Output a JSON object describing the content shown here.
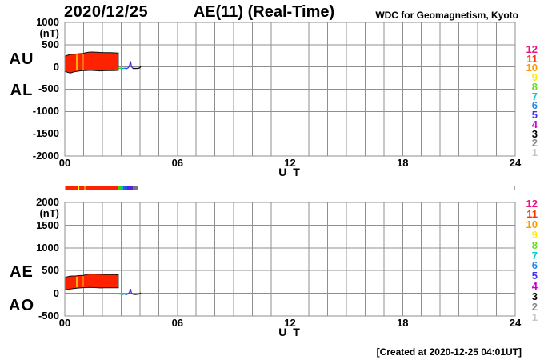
{
  "header": {
    "date": "2020/12/25",
    "title": "AE(11) (Real-Time)",
    "source": "WDC for Geomagnetism, Kyoto"
  },
  "footer": {
    "created": "[Created at 2020-12-25 04:01UT]"
  },
  "colors": {
    "grid": "#8f8f8f",
    "band_fill": "#ff2200",
    "band_edge": "#111111",
    "bar_border": "#a8a8a8"
  },
  "legend": {
    "items": [
      {
        "label": "12",
        "color": "#ee1188"
      },
      {
        "label": "11",
        "color": "#ff3300"
      },
      {
        "label": "10",
        "color": "#ff9900"
      },
      {
        "label": "9",
        "color": "#ffee00"
      },
      {
        "label": "8",
        "color": "#66dd22"
      },
      {
        "label": "7",
        "color": "#00cccc"
      },
      {
        "label": "6",
        "color": "#2288ee"
      },
      {
        "label": "5",
        "color": "#4433ee"
      },
      {
        "label": "4",
        "color": "#cc00cc"
      },
      {
        "label": "3",
        "color": "#000000"
      },
      {
        "label": "2",
        "color": "#888888"
      },
      {
        "label": "1",
        "color": "#c6c6c6"
      }
    ]
  },
  "activity_bar": {
    "range_hours": [
      0,
      24
    ],
    "segments": [
      {
        "start": 0,
        "end": 2.81,
        "color": "#ff2200"
      },
      {
        "start": 2.81,
        "end": 2.94,
        "color": "#44cc11"
      },
      {
        "start": 2.94,
        "end": 3.07,
        "color": "#00bbcc"
      },
      {
        "start": 3.07,
        "end": 3.3,
        "color": "#2255ee"
      },
      {
        "start": 3.3,
        "end": 3.58,
        "color": "#5522dd"
      },
      {
        "start": 3.58,
        "end": 3.84,
        "color": "#777777"
      }
    ],
    "markers": [
      {
        "t": 0.64,
        "color": "#ffee00"
      },
      {
        "t": 0.98,
        "color": "#ff9900"
      }
    ]
  },
  "chart_data": [
    {
      "type": "area",
      "title": "AE(11) (Real-Time)  upper panel (AU/AL)",
      "xlabel": "U T",
      "unit": "(nT)",
      "xlim": [
        0,
        24
      ],
      "ylim": [
        -2000,
        1000
      ],
      "x_ticks": [
        {
          "t": 0,
          "label": "00"
        },
        {
          "t": 6,
          "label": "06"
        },
        {
          "t": 12,
          "label": "12"
        },
        {
          "t": 18,
          "label": "18"
        },
        {
          "t": 24,
          "label": "24"
        }
      ],
      "y_ticks": [
        {
          "v": 1000,
          "label": "1000"
        },
        {
          "v": 500,
          "label": "500"
        },
        {
          "v": 0,
          "label": "0"
        },
        {
          "v": -500,
          "label": "-500"
        },
        {
          "v": -1000,
          "label": "-1000"
        },
        {
          "v": -1500,
          "label": "-1500"
        },
        {
          "v": -2000,
          "label": "-2000"
        }
      ],
      "left_labels": [
        "AU",
        "AL"
      ],
      "band": {
        "upper": {
          "name": "AU",
          "points": [
            [
              0,
              240
            ],
            [
              0.1,
              255
            ],
            [
              0.25,
              280
            ],
            [
              0.45,
              285
            ],
            [
              0.6,
              290
            ],
            [
              0.64,
              292
            ],
            [
              0.8,
              300
            ],
            [
              0.98,
              305
            ],
            [
              1.1,
              320
            ],
            [
              1.25,
              330
            ],
            [
              1.45,
              335
            ],
            [
              1.7,
              330
            ],
            [
              1.95,
              325
            ],
            [
              2.2,
              322
            ],
            [
              2.45,
              322
            ],
            [
              2.65,
              318
            ],
            [
              2.85,
              315
            ]
          ]
        },
        "lower": {
          "name": "AL",
          "points": [
            [
              0,
              -100
            ],
            [
              0.15,
              -120
            ],
            [
              0.3,
              -135
            ],
            [
              0.5,
              -110
            ],
            [
              0.7,
              -95
            ],
            [
              0.9,
              -85
            ],
            [
              1.1,
              -80
            ],
            [
              1.35,
              -75
            ],
            [
              1.6,
              -80
            ],
            [
              1.85,
              -88
            ],
            [
              2.1,
              -85
            ],
            [
              2.35,
              -80
            ],
            [
              2.6,
              -82
            ],
            [
              2.85,
              -75
            ]
          ]
        }
      },
      "tail": [
        {
          "color": "#44cc11",
          "points": [
            [
              2.85,
              -20
            ],
            [
              2.95,
              -30
            ],
            [
              3.02,
              -20
            ]
          ]
        },
        {
          "color": "#00bbcc",
          "points": [
            [
              3.02,
              -20
            ],
            [
              3.1,
              -35
            ],
            [
              3.18,
              -25
            ]
          ]
        },
        {
          "color": "#2255ee",
          "points": [
            [
              3.18,
              -25
            ],
            [
              3.28,
              -40
            ],
            [
              3.38,
              -20
            ]
          ]
        },
        {
          "color": "#5522dd",
          "points": [
            [
              3.38,
              -20
            ],
            [
              3.45,
              30
            ],
            [
              3.5,
              130
            ],
            [
              3.55,
              10
            ],
            [
              3.62,
              -30
            ]
          ]
        },
        {
          "color": "#111111",
          "points": [
            [
              3.62,
              -30
            ],
            [
              3.75,
              -35
            ],
            [
              3.9,
              -30
            ],
            [
              4.0,
              -20
            ],
            [
              4.05,
              15
            ]
          ]
        }
      ]
    },
    {
      "type": "area",
      "title": "AE(11) (Real-Time)  lower panel (AE/AO)",
      "xlabel": "U T",
      "unit": "(nT)",
      "xlim": [
        0,
        24
      ],
      "ylim": [
        -500,
        2000
      ],
      "x_ticks": [
        {
          "t": 0,
          "label": "00"
        },
        {
          "t": 6,
          "label": "06"
        },
        {
          "t": 12,
          "label": "12"
        },
        {
          "t": 18,
          "label": "18"
        },
        {
          "t": 24,
          "label": "24"
        }
      ],
      "y_ticks": [
        {
          "v": 2000,
          "label": "2000"
        },
        {
          "v": 1500,
          "label": "1500"
        },
        {
          "v": 1000,
          "label": "1000"
        },
        {
          "v": 500,
          "label": "500"
        },
        {
          "v": 0,
          "label": "0"
        },
        {
          "v": -500,
          "label": "-500"
        }
      ],
      "left_labels": [
        "AE",
        "AO"
      ],
      "band": {
        "upper": {
          "name": "AE",
          "points": [
            [
              0,
              340
            ],
            [
              0.1,
              360
            ],
            [
              0.25,
              375
            ],
            [
              0.45,
              380
            ],
            [
              0.6,
              382
            ],
            [
              0.8,
              390
            ],
            [
              0.98,
              395
            ],
            [
              1.1,
              405
            ],
            [
              1.25,
              420
            ],
            [
              1.45,
              425
            ],
            [
              1.7,
              420
            ],
            [
              1.95,
              415
            ],
            [
              2.2,
              412
            ],
            [
              2.45,
              412
            ],
            [
              2.65,
              410
            ],
            [
              2.85,
              405
            ]
          ]
        },
        "lower": {
          "name": "AO",
          "points": [
            [
              0,
              70
            ],
            [
              0.15,
              85
            ],
            [
              0.3,
              95
            ],
            [
              0.5,
              105
            ],
            [
              0.7,
              115
            ],
            [
              0.9,
              120
            ],
            [
              1.1,
              125
            ],
            [
              1.35,
              128
            ],
            [
              1.6,
              125
            ],
            [
              1.85,
              118
            ],
            [
              2.1,
              120
            ],
            [
              2.35,
              122
            ],
            [
              2.6,
              120
            ],
            [
              2.85,
              122
            ]
          ]
        }
      },
      "tail": [
        {
          "color": "#44cc11",
          "points": [
            [
              2.85,
              -10
            ],
            [
              2.95,
              -20
            ],
            [
              3.02,
              -10
            ]
          ]
        },
        {
          "color": "#00bbcc",
          "points": [
            [
              3.02,
              -10
            ],
            [
              3.1,
              -25
            ],
            [
              3.18,
              -15
            ]
          ]
        },
        {
          "color": "#2255ee",
          "points": [
            [
              3.18,
              -15
            ],
            [
              3.28,
              -30
            ],
            [
              3.38,
              -10
            ]
          ]
        },
        {
          "color": "#5522dd",
          "points": [
            [
              3.38,
              -10
            ],
            [
              3.45,
              20
            ],
            [
              3.5,
              95
            ],
            [
              3.55,
              5
            ],
            [
              3.62,
              -20
            ]
          ]
        },
        {
          "color": "#111111",
          "points": [
            [
              3.62,
              -20
            ],
            [
              3.75,
              -25
            ],
            [
              3.9,
              -20
            ],
            [
              4.0,
              -10
            ],
            [
              4.05,
              10
            ]
          ]
        }
      ]
    }
  ]
}
